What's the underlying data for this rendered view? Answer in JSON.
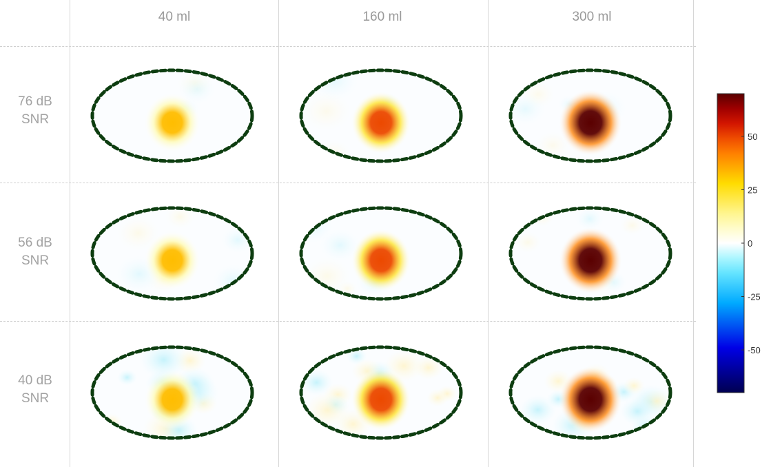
{
  "columns": [
    {
      "label": "40 ml",
      "intensity": 0.18
    },
    {
      "label": "160 ml",
      "intensity": 0.55
    },
    {
      "label": "300 ml",
      "intensity": 1.0
    }
  ],
  "rows": [
    {
      "label_line1": "76 dB",
      "label_line2": "SNR",
      "noise": 0.06
    },
    {
      "label_line1": "56 dB",
      "label_line2": "SNR",
      "noise": 0.1
    },
    {
      "label_line1": "40 dB",
      "label_line2": "SNR",
      "noise": 0.45
    }
  ],
  "colorbar": {
    "min": -70,
    "max": 70,
    "ticks": [
      {
        "value": 50,
        "label": "50"
      },
      {
        "value": 25,
        "label": "25"
      },
      {
        "value": 0,
        "label": "0"
      },
      {
        "value": -25,
        "label": "-25"
      },
      {
        "value": -50,
        "label": "-50"
      }
    ]
  },
  "colors": {
    "electrode": "#0d3d10",
    "boundary": "#1a1a1a",
    "label_text": "#9a9a9a"
  }
}
